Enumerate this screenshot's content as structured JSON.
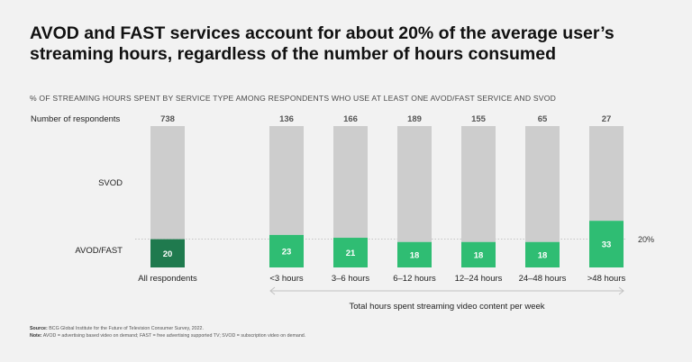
{
  "title": "AVOD and FAST services account for about 20% of the average user’s streaming hours, regardless of the number of hours consumed",
  "subtitle": "% OF STREAMING HOURS SPENT BY SERVICE TYPE AMONG RESPONDENTS WHO USE AT LEAST ONE AVOD/FAST SERVICE AND SVOD",
  "footnotes": {
    "source_label": "Source:",
    "source_text": "BCG Global Institute for the Future of Television Consumer Survey, 2022.",
    "note_label": "Note:",
    "note_text": "AVOD = advertising based video on demand; FAST = free advertising supported TV; SVOD = subscription video on demand."
  },
  "chart_data": {
    "type": "bar",
    "stacked": true,
    "row_labels": {
      "respondents": "Number of respondents",
      "svod": "SVOD",
      "avod": "AVOD/FAST"
    },
    "categories": [
      "All respondents",
      "<3 hours",
      "3–6 hours",
      "6–12 hours",
      "12–24 hours",
      "24–48 hours",
      ">48 hours"
    ],
    "respondents": [
      "738",
      "136",
      "166",
      "189",
      "155",
      "65",
      "27"
    ],
    "series": [
      {
        "name": "AVOD/FAST",
        "values": [
          20,
          23,
          21,
          18,
          18,
          18,
          33
        ],
        "labels": [
          "20",
          "23",
          "21",
          "18",
          "18",
          "18",
          "33"
        ]
      },
      {
        "name": "SVOD",
        "values": [
          80,
          77,
          79,
          82,
          82,
          82,
          67
        ]
      }
    ],
    "reference_line": {
      "value": 20,
      "label": "20%"
    },
    "group_axis_label": "Total hours spent streaming video content per week",
    "ylim": [
      0,
      100
    ],
    "colors": {
      "svod": "#cdcdcd",
      "avod_total": "#1f7a4e",
      "avod": "#2fbd73",
      "reference": "#b5b5b5",
      "arrow": "#c2c2c2"
    }
  }
}
